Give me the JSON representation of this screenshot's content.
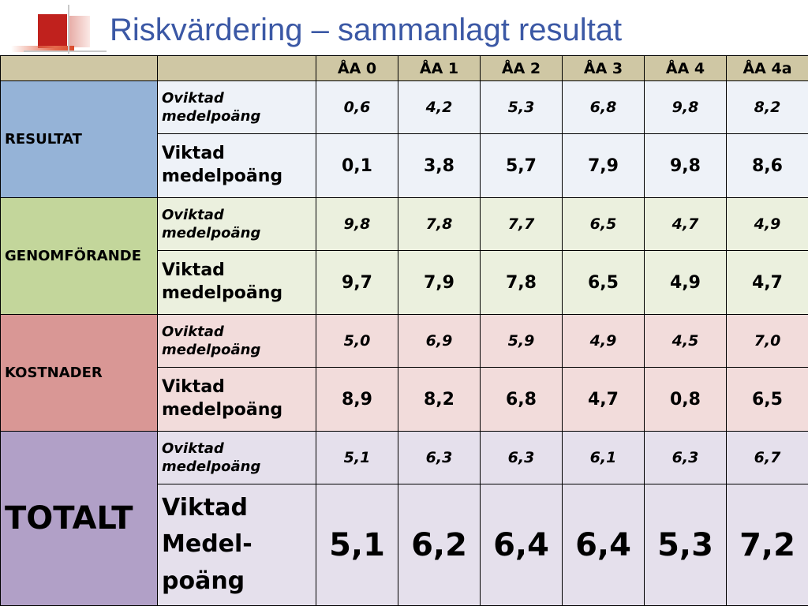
{
  "title": "Riskvärdering – sammanlagt resultat",
  "columns": [
    "ÅA 0",
    "ÅA 1",
    "ÅA 2",
    "ÅA 3",
    "ÅA 4",
    "ÅA 4a"
  ],
  "groups": [
    {
      "name": "RESULTAT",
      "unweighted": {
        "label": "Oviktad medelpoäng",
        "values": [
          "0,6",
          "4,2",
          "5,3",
          "6,8",
          "9,8",
          "8,2"
        ]
      },
      "weighted": {
        "label": "Viktad medelpoäng",
        "values": [
          "0,1",
          "3,8",
          "5,7",
          "7,9",
          "9,8",
          "8,6"
        ]
      }
    },
    {
      "name": "GENOMFÖRANDE",
      "unweighted": {
        "label": "Oviktad medelpoäng",
        "values": [
          "9,8",
          "7,8",
          "7,7",
          "6,5",
          "4,7",
          "4,9"
        ]
      },
      "weighted": {
        "label": "Viktad medelpoäng",
        "values": [
          "9,7",
          "7,9",
          "7,8",
          "6,5",
          "4,9",
          "4,7"
        ]
      }
    },
    {
      "name": "KOSTNADER",
      "unweighted": {
        "label": "Oviktad medelpoäng",
        "values": [
          "5,0",
          "6,9",
          "5,9",
          "4,9",
          "4,5",
          "7,0"
        ]
      },
      "weighted": {
        "label": "Viktad medelpoäng",
        "values": [
          "8,9",
          "8,2",
          "6,8",
          "4,7",
          "0,8",
          "6,5"
        ]
      }
    },
    {
      "name": "TOTALT",
      "unweighted": {
        "label": "Oviktad medelpoäng",
        "values": [
          "5,1",
          "6,3",
          "6,3",
          "6,1",
          "6,3",
          "6,7"
        ]
      },
      "weighted": {
        "label": "Viktad Medel-poäng",
        "values": [
          "5,1",
          "6,2",
          "6,4",
          "6,4",
          "5,3",
          "7,2"
        ]
      }
    }
  ],
  "colors": {
    "title": "#3b58a5",
    "header_bg": "#cfc7a4",
    "resultat": "#95b3d7",
    "genomforande": "#c3d69b",
    "kostnader": "#d99795",
    "totalt": "#b1a0c7"
  }
}
